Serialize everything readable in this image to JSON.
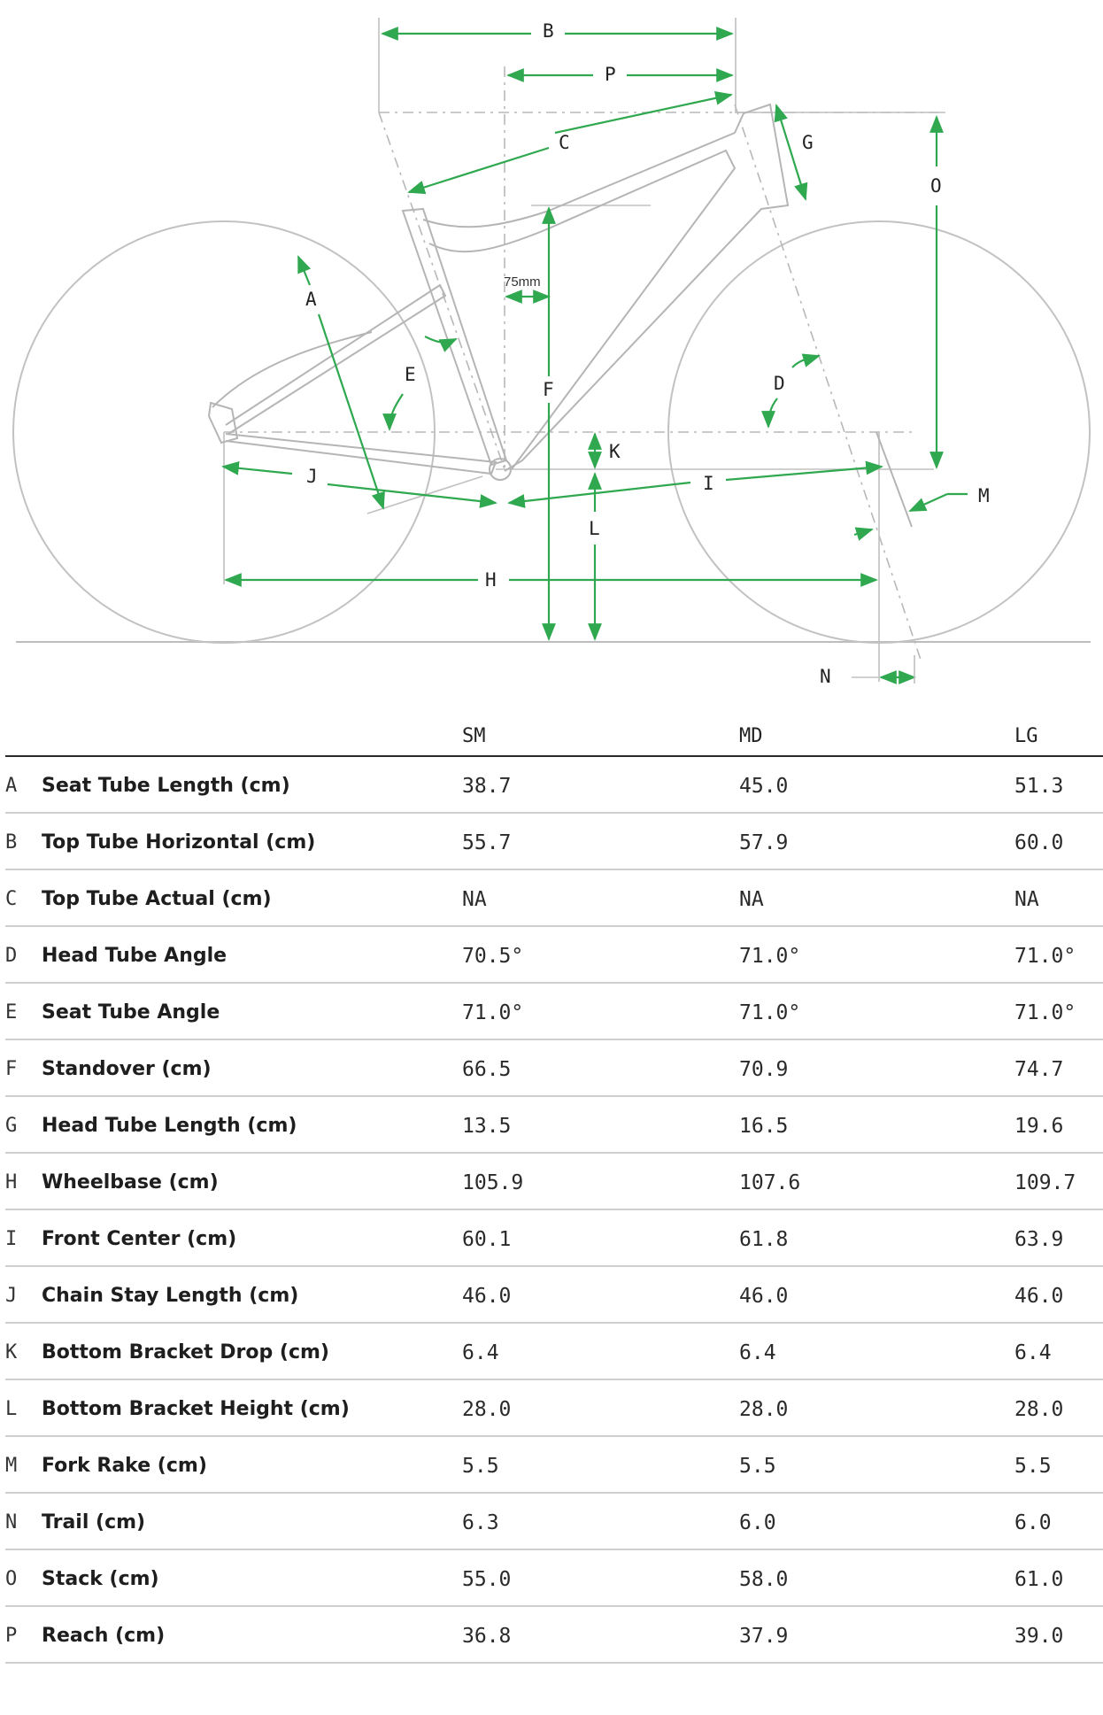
{
  "diagram": {
    "labels": {
      "A": "A",
      "B": "B",
      "C": "C",
      "D": "D",
      "E": "E",
      "F": "F",
      "G": "G",
      "H": "H",
      "I": "I",
      "J": "J",
      "K": "K",
      "L": "L",
      "M": "M",
      "N": "N",
      "O": "O",
      "P": "P"
    },
    "offset_note": "75mm",
    "colors": {
      "dimension": "#2fa84f",
      "frame": "#b5b5b5"
    }
  },
  "table": {
    "columns": [
      "SM",
      "MD",
      "LG"
    ],
    "rows": [
      {
        "letter": "A",
        "name": "Seat Tube Length (cm)",
        "values": [
          "38.7",
          "45.0",
          "51.3"
        ]
      },
      {
        "letter": "B",
        "name": "Top Tube Horizontal (cm)",
        "values": [
          "55.7",
          "57.9",
          "60.0"
        ]
      },
      {
        "letter": "C",
        "name": "Top Tube Actual (cm)",
        "values": [
          "NA",
          "NA",
          "NA"
        ]
      },
      {
        "letter": "D",
        "name": "Head Tube Angle",
        "values": [
          "70.5°",
          "71.0°",
          "71.0°"
        ]
      },
      {
        "letter": "E",
        "name": "Seat Tube Angle",
        "values": [
          "71.0°",
          "71.0°",
          "71.0°"
        ]
      },
      {
        "letter": "F",
        "name": "Standover (cm)",
        "values": [
          "66.5",
          "70.9",
          "74.7"
        ]
      },
      {
        "letter": "G",
        "name": "Head Tube Length (cm)",
        "values": [
          "13.5",
          "16.5",
          "19.6"
        ]
      },
      {
        "letter": "H",
        "name": "Wheelbase (cm)",
        "values": [
          "105.9",
          "107.6",
          "109.7"
        ]
      },
      {
        "letter": "I",
        "name": "Front Center (cm)",
        "values": [
          "60.1",
          "61.8",
          "63.9"
        ]
      },
      {
        "letter": "J",
        "name": "Chain Stay Length (cm)",
        "values": [
          "46.0",
          "46.0",
          "46.0"
        ]
      },
      {
        "letter": "K",
        "name": "Bottom Bracket Drop (cm)",
        "values": [
          "6.4",
          "6.4",
          "6.4"
        ]
      },
      {
        "letter": "L",
        "name": "Bottom Bracket Height (cm)",
        "values": [
          "28.0",
          "28.0",
          "28.0"
        ]
      },
      {
        "letter": "M",
        "name": "Fork Rake (cm)",
        "values": [
          "5.5",
          "5.5",
          "5.5"
        ]
      },
      {
        "letter": "N",
        "name": "Trail (cm)",
        "values": [
          "6.3",
          "6.0",
          "6.0"
        ]
      },
      {
        "letter": "O",
        "name": "Stack (cm)",
        "values": [
          "55.0",
          "58.0",
          "61.0"
        ]
      },
      {
        "letter": "P",
        "name": "Reach (cm)",
        "values": [
          "36.8",
          "37.9",
          "39.0"
        ]
      }
    ]
  }
}
